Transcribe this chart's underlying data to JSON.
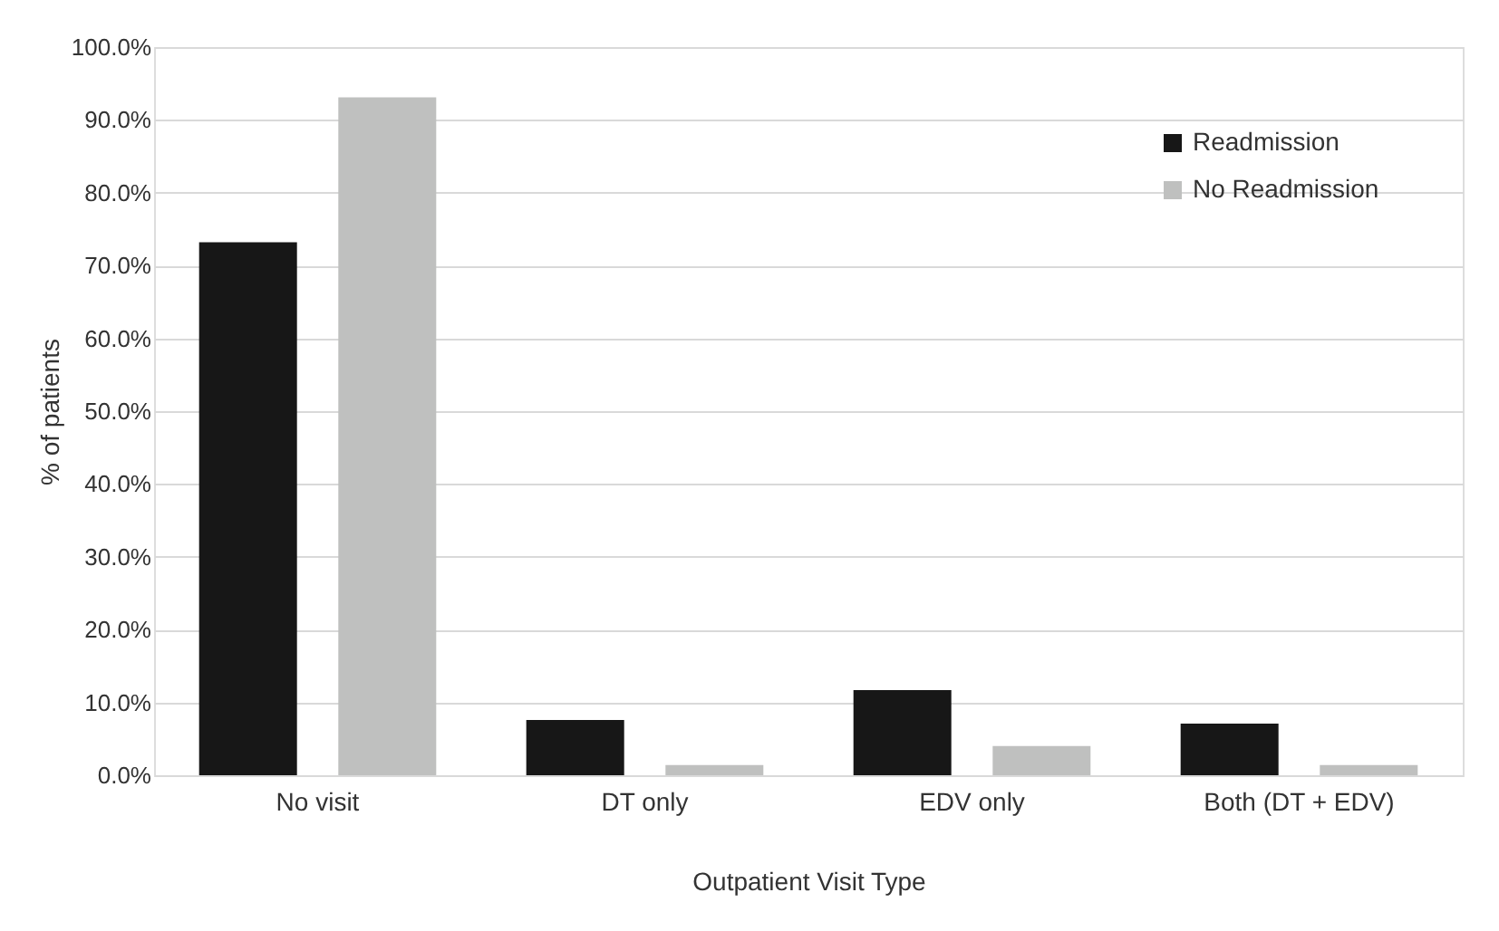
{
  "chart_data": {
    "type": "bar",
    "xlabel": "Outpatient Visit Type",
    "ylabel": "% of patients",
    "categories": [
      "No visit",
      "DT only",
      "EDV only",
      "Both (DT + EDV)"
    ],
    "series": [
      {
        "name": "Readmission",
        "color": "#171717",
        "values": [
          73.2,
          7.6,
          11.7,
          7.1
        ]
      },
      {
        "name": "No Readmission",
        "color": "#bfc0bf",
        "values": [
          93.1,
          1.4,
          4.0,
          1.4
        ]
      }
    ],
    "ylim": [
      0,
      100
    ],
    "yticks": [
      {
        "value": 0,
        "label": "0.0%"
      },
      {
        "value": 10,
        "label": "10.0%"
      },
      {
        "value": 20,
        "label": "20.0%"
      },
      {
        "value": 30,
        "label": "30.0%"
      },
      {
        "value": 40,
        "label": "40.0%"
      },
      {
        "value": 50,
        "label": "50.0%"
      },
      {
        "value": 60,
        "label": "60.0%"
      },
      {
        "value": 70,
        "label": "70.0%"
      },
      {
        "value": 80,
        "label": "80.0%"
      },
      {
        "value": 90,
        "label": "90.0%"
      },
      {
        "value": 100,
        "label": "100.0%"
      }
    ],
    "grid": "y",
    "legend": "top right"
  }
}
